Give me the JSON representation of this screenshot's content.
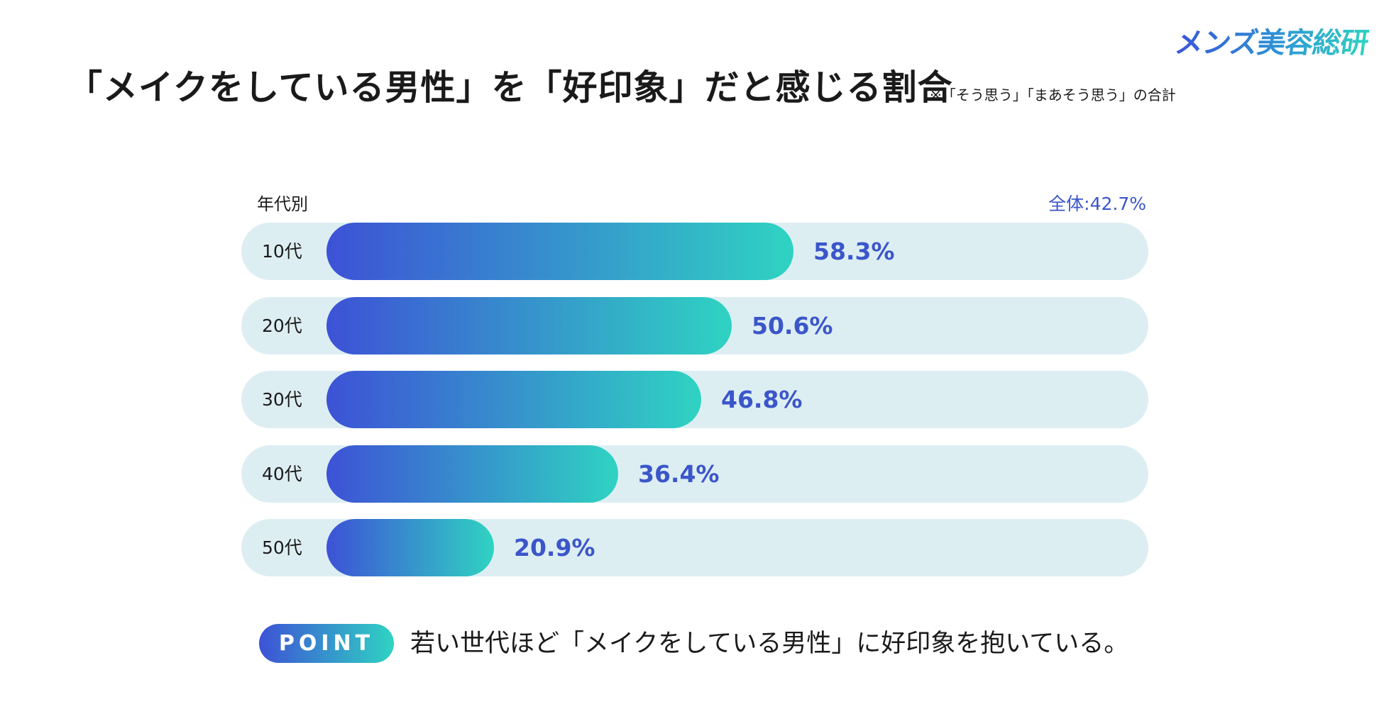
{
  "logo": "メンズ美容総研",
  "header": {
    "title": "「メイクをしている男性」を「好印象」だと感じる割合",
    "note": "※「そう思う」「まあそう思う」の合計"
  },
  "chart_data": {
    "type": "bar",
    "orientation": "horizontal",
    "group_label": "年代別",
    "overall_label": "全体:42.7%",
    "categories": [
      "10代",
      "20代",
      "30代",
      "40代",
      "50代"
    ],
    "values": [
      58.3,
      50.6,
      46.8,
      36.4,
      20.9
    ],
    "value_labels": [
      "58.3%",
      "50.6%",
      "46.8%",
      "36.4%",
      "20.9%"
    ],
    "xlim": [
      0,
      100
    ],
    "unit": "%",
    "colors": {
      "bar_start": "#3d52d6",
      "bar_end": "#2fd3c2",
      "track": "#ddeef3",
      "value_text": "#3b56c9"
    }
  },
  "point": {
    "badge": "POINT",
    "text": "若い世代ほど「メイクをしている男性」に好印象を抱いている。"
  }
}
